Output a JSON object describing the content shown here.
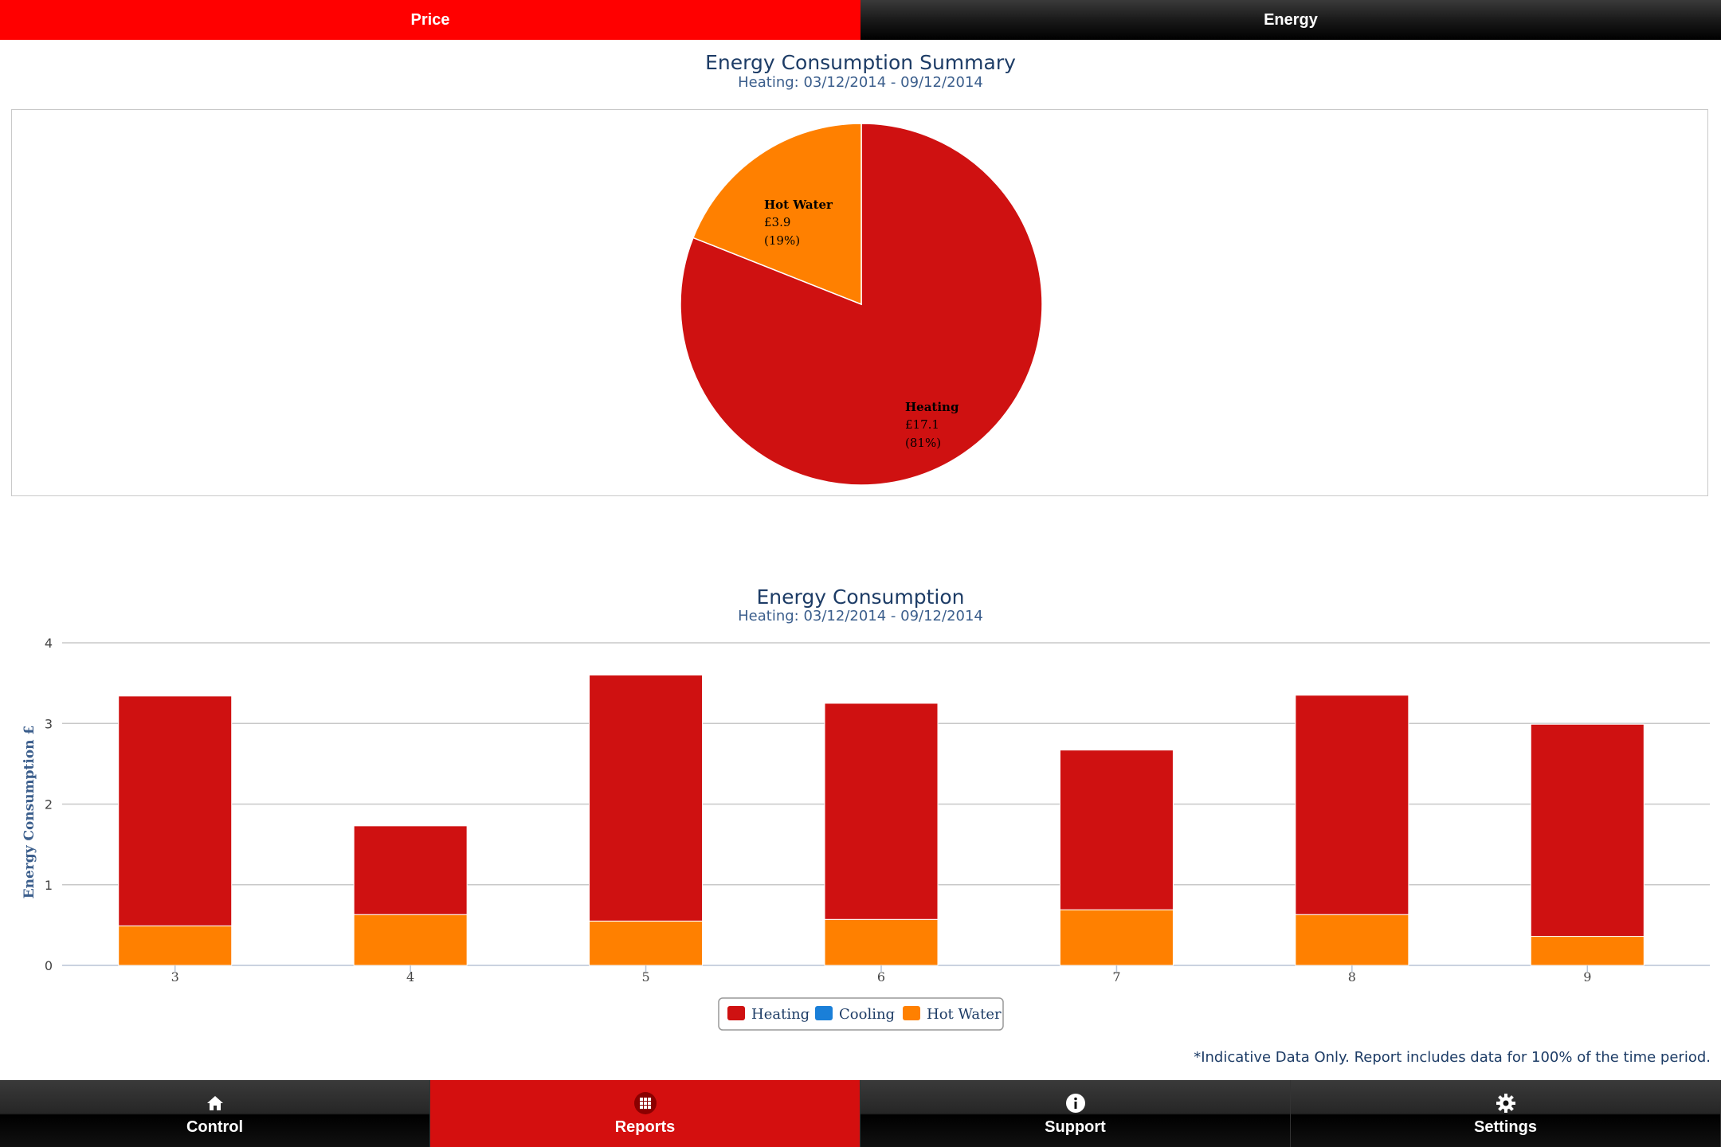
{
  "tabs": {
    "price": "Price",
    "energy": "Energy"
  },
  "summary": {
    "title": "Energy Consumption Summary",
    "subtitle": "Heating: 03/12/2014 - 09/12/2014"
  },
  "chart": {
    "title": "Energy Consumption",
    "subtitle": "Heating: 03/12/2014 - 09/12/2014"
  },
  "footnote": "*Indicative Data Only. Report includes data for 100% of the time period.",
  "nav": {
    "control": "Control",
    "reports": "Reports",
    "support": "Support",
    "settings": "Settings"
  },
  "icons": {
    "control": "home-icon",
    "reports": "grid-icon",
    "support": "info-icon",
    "settings": "gear-icon"
  },
  "colors": {
    "heating": "#cf1111",
    "cooling": "#1a7fd8",
    "hot_water": "#ff8000",
    "accent": "#ff0000",
    "nav_active": "#d40f0f"
  },
  "chart_data": [
    {
      "type": "pie",
      "title": "Energy Consumption Summary",
      "subtitle": "Heating: 03/12/2014 - 09/12/2014",
      "slices": [
        {
          "label": "Heating",
          "value_text": "£17.1",
          "percent_text": "(81%)",
          "value": 17.1,
          "percent": 81
        },
        {
          "label": "Hot Water",
          "value_text": "£3.9",
          "percent_text": "(19%)",
          "value": 3.9,
          "percent": 19
        }
      ]
    },
    {
      "type": "bar",
      "stacked": true,
      "title": "Energy Consumption",
      "subtitle": "Heating: 03/12/2014 - 09/12/2014",
      "ylabel": "Energy Consumption £",
      "xlabel": "",
      "ylim": [
        0,
        4
      ],
      "yticks": [
        0,
        1,
        2,
        3,
        4
      ],
      "categories": [
        "3",
        "4",
        "5",
        "6",
        "7",
        "8",
        "9"
      ],
      "series": [
        {
          "name": "Heating",
          "values": [
            2.85,
            1.1,
            3.05,
            2.68,
            1.98,
            2.72,
            2.63
          ]
        },
        {
          "name": "Cooling",
          "values": [
            0,
            0,
            0,
            0,
            0,
            0,
            0
          ]
        },
        {
          "name": "Hot Water",
          "values": [
            0.49,
            0.63,
            0.55,
            0.57,
            0.69,
            0.63,
            0.36
          ]
        }
      ],
      "legend": [
        "Heating",
        "Cooling",
        "Hot Water"
      ],
      "legend_position": "bottom-center",
      "grid": true
    }
  ]
}
